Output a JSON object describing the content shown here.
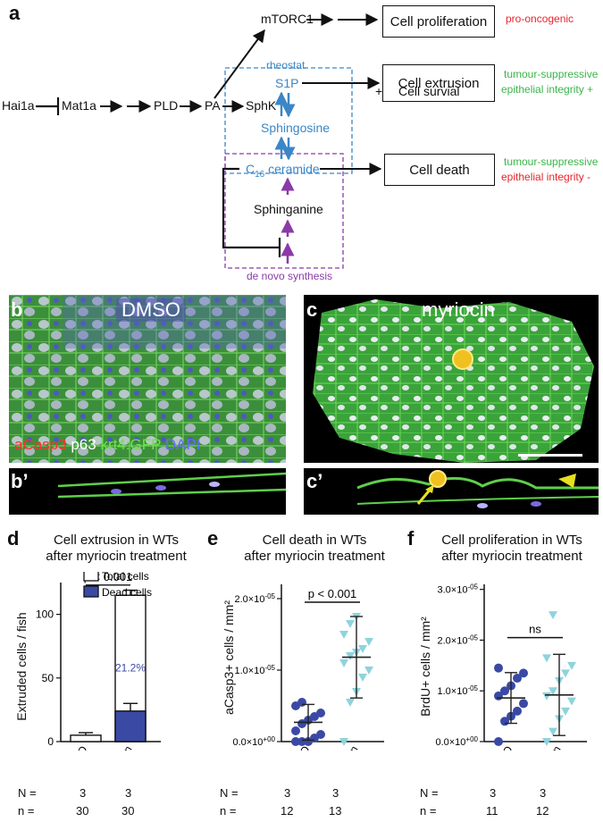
{
  "panel_a": {
    "letter": "a",
    "nodes": {
      "hai1a": "Hai1a",
      "mat1a": "Mat1a",
      "pld": "PLD",
      "pa": "PA",
      "mtorc1": "mTORC1",
      "sphk": "SphK",
      "s1p": "S1P",
      "sphingosine": "Sphingosine",
      "ceramide_prefix": "C",
      "ceramide_sub": "16",
      "ceramide_suffix": " ceramide",
      "sphinganine": "Sphinganine"
    },
    "box_labels": {
      "rheostat": "rheostat",
      "de_novo": "de novo synthesis"
    },
    "outcomes": {
      "proliferation": "Cell proliferation",
      "extrusion_line1": "Cell extrusion",
      "extrusion_plus": "+",
      "extrusion_line2": "Cell survial",
      "death": "Cell death"
    },
    "annotations": {
      "pro_oncogenic": "pro-oncogenic",
      "ts1": "tumour-suppressive",
      "ei_plus": "epithelial integrity +",
      "ts2": "tumour-suppressive",
      "ei_minus": "epithelial integrity -"
    },
    "colors": {
      "blue": "#3b86c6",
      "purple": "#8b3aa8",
      "red": "#e6262c",
      "green": "#3bb54a"
    }
  },
  "panel_b": {
    "letter": "b",
    "title": "DMSO",
    "stain_acasp3": "aCasp3",
    "stain_p63": "p63",
    "stain_krt4": "krt4:GFP",
    "stain_dapi": "DAPI",
    "sub_letter": "b’"
  },
  "panel_c": {
    "letter": "c",
    "title": "myriocin",
    "sub_letter": "c’"
  },
  "panel_d": {
    "letter": "d",
    "title_line1": "Cell extrusion in WTs",
    "title_line2": "after myriocin treatment",
    "ylabel": "Extruded cells / fish",
    "yticks": [
      "0",
      "50",
      "100"
    ],
    "legend_total": "Total cells",
    "legend_dead": "Dead cells",
    "pvalue": "p < 0.001",
    "percent_label": "21.2%",
    "N_label": "N =",
    "n_label": "n =",
    "N_values": [
      "3",
      "3"
    ],
    "n_values": [
      "30",
      "30"
    ]
  },
  "panel_e": {
    "letter": "e",
    "title_line1": "Cell death in WTs",
    "title_line2": "after myriocin treatment",
    "ylabel": "aCasp3+ cells / mm²",
    "yticks": [
      "0.0×10+00",
      "1.0×10-05",
      "2.0×10-05"
    ],
    "pvalue": "p < 0.001",
    "N_label": "N =",
    "n_label": "n =",
    "N_values": [
      "3",
      "3"
    ],
    "n_values": [
      "12",
      "13"
    ]
  },
  "panel_f": {
    "letter": "f",
    "title_line1": "Cell proliferation in WTs",
    "title_line2": "after myriocin treatment",
    "ylabel": "BrdU+ cells / mm²",
    "yticks": [
      "0.0×10+00",
      "1.0×10-05",
      "2.0×10-05",
      "3.0×10-05"
    ],
    "pvalue": "ns",
    "N_label": "N =",
    "n_label": "n =",
    "N_values": [
      "3",
      "3"
    ],
    "n_values": [
      "11",
      "12"
    ]
  },
  "chart_data": [
    {
      "type": "bar",
      "categories": [
        "DMSO",
        "myriocin"
      ],
      "series": [
        {
          "name": "Total cells",
          "values": [
            5,
            115
          ],
          "errors": [
            2,
            4
          ],
          "color": "#ffffff"
        },
        {
          "name": "Dead cells",
          "values": [
            0,
            24
          ],
          "errors": [
            0,
            6
          ],
          "color": "#3a49a4"
        }
      ],
      "title": "Cell extrusion in WTs after myriocin treatment",
      "ylabel": "Extruded cells / fish",
      "ylim": [
        0,
        125
      ],
      "yticks": [
        0,
        50,
        100
      ],
      "annotation": "p < 0.001",
      "bar_label": "21.2%"
    },
    {
      "type": "scatter",
      "categories": [
        "DMSO",
        "myriocin"
      ],
      "series": [
        {
          "name": "DMSO",
          "values": [
            0.0,
            0.0,
            0.0,
            5e-07,
            1e-06,
            1.5e-06,
            2.5e-06,
            3e-06,
            3.5e-06,
            4e-06,
            5e-06,
            5.5e-06
          ],
          "mean": 2.7e-06,
          "sd": 2.5e-06,
          "color": "#3a49a4"
        },
        {
          "name": "myriocin",
          "values": [
            0.0,
            5.5e-06,
            7e-06,
            9e-06,
            1e-05,
            1.1e-05,
            1.2e-05,
            1.25e-05,
            1.3e-05,
            1.4e-05,
            1.5e-05,
            1.65e-05,
            1.75e-05
          ],
          "mean": 1.18e-05,
          "sd": 5.7e-06,
          "color": "#8ed4dc"
        }
      ],
      "ylabel": "aCasp3+ cells / mm²",
      "ylim": [
        0,
        2.2e-05
      ],
      "yticks": [
        0,
        1e-05,
        2e-05
      ],
      "annotation": "p < 0.001"
    },
    {
      "type": "scatter",
      "categories": [
        "DMSO",
        "myriocin"
      ],
      "series": [
        {
          "name": "DMSO",
          "values": [
            0.0,
            4e-06,
            5e-06,
            6e-06,
            7.5e-06,
            9e-06,
            1e-05,
            1.1e-05,
            1.25e-05,
            1.35e-05,
            1.45e-05
          ],
          "mean": 8.6e-06,
          "sd": 5e-06,
          "color": "#3a49a4"
        },
        {
          "name": "myriocin",
          "values": [
            0.0,
            2e-06,
            4.5e-06,
            6e-06,
            8e-06,
            9e-06,
            1e-05,
            1.2e-05,
            1.35e-05,
            1.5e-05,
            1.65e-05,
            2.5e-05
          ],
          "mean": 9.2e-06,
          "sd": 8e-06,
          "color": "#8ed4dc"
        }
      ],
      "ylabel": "BrdU+ cells / mm²",
      "ylim": [
        0,
        3.1e-05
      ],
      "yticks": [
        0,
        1e-05,
        2e-05,
        3e-05
      ],
      "annotation": "ns"
    }
  ]
}
